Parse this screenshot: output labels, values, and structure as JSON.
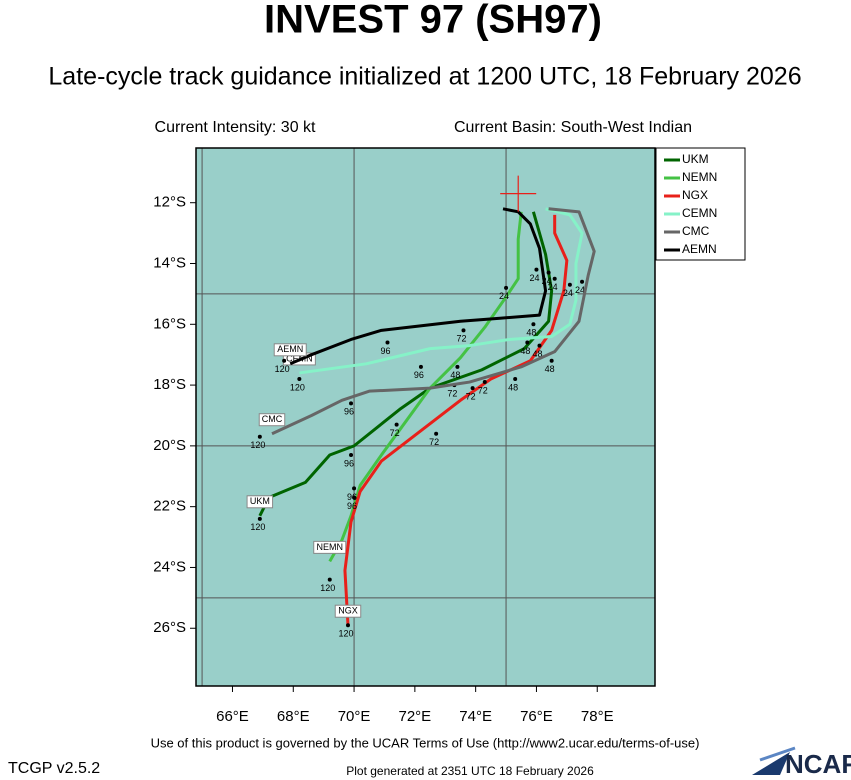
{
  "chart_data": {
    "type": "track-map",
    "title": "INVEST 97 (SH97)",
    "subtitle": "Late-cycle track guidance initialized at 1200 UTC, 18 February 2026",
    "current_intensity": "Current Intensity: 30 kt",
    "current_basin": "Current Basin: South-West Indian",
    "terms": "Use of this product is governed by the UCAR Terms of Use (http://www2.ucar.edu/terms-of-use)",
    "version": "TCGP v2.5.2",
    "generated": "Plot generated at 2351 UTC   18 February 2026",
    "logo": "NCAR",
    "background": "#99cfc9",
    "xlim": [
      64.8,
      79.9
    ],
    "ylim": [
      -10.2,
      -27.9
    ],
    "xticks": [
      {
        "value": 66,
        "label": "66°E"
      },
      {
        "value": 68,
        "label": "68°E"
      },
      {
        "value": 70,
        "label": "70°E"
      },
      {
        "value": 72,
        "label": "72°E"
      },
      {
        "value": 74,
        "label": "74°E"
      },
      {
        "value": 76,
        "label": "76°E"
      },
      {
        "value": 78,
        "label": "78°E"
      }
    ],
    "yticks": [
      {
        "value": -12,
        "label": "12°S"
      },
      {
        "value": -14,
        "label": "14°S"
      },
      {
        "value": -16,
        "label": "16°S"
      },
      {
        "value": -18,
        "label": "18°S"
      },
      {
        "value": -20,
        "label": "20°S"
      },
      {
        "value": -22,
        "label": "22°S"
      },
      {
        "value": -24,
        "label": "24°S"
      },
      {
        "value": -26,
        "label": "26°S"
      }
    ],
    "xgrid": [
      65,
      70,
      75
    ],
    "ygrid": [
      -15,
      -20,
      -25
    ],
    "current_position": {
      "lon": 75.4,
      "lat": -11.7
    },
    "legend": "upper right",
    "series": [
      {
        "name": "UKM",
        "color": "#006400",
        "lon": [
          75.9,
          76.3,
          76.5,
          76.4,
          75.6,
          74.2,
          72.5,
          71.5,
          70.0,
          69.2,
          68.4,
          67.2,
          66.9
        ],
        "lat": [
          -12.3,
          -13.7,
          -14.9,
          -15.9,
          -16.8,
          -17.5,
          -18.1,
          -18.8,
          -20.0,
          -20.3,
          -21.2,
          -21.7,
          -22.3
        ],
        "labels": [
          {
            "hour": 24,
            "lon": 76.4,
            "lat": -14.3
          },
          {
            "hour": 48,
            "lon": 75.7,
            "lat": -16.6
          },
          {
            "hour": 72,
            "lon": 73.3,
            "lat": -18.0
          },
          {
            "hour": 96,
            "lon": 69.9,
            "lat": -20.3
          },
          {
            "hour": 120,
            "lon": 66.9,
            "lat": -22.4
          }
        ]
      },
      {
        "name": "NEMN",
        "color": "#44c244",
        "lon": [
          75.5,
          75.4,
          75.4,
          75.0,
          74.3,
          73.5,
          72.5,
          71.7,
          70.9,
          70.2,
          69.9,
          69.6,
          69.2
        ],
        "lat": [
          -12.3,
          -13.2,
          -14.5,
          -15.1,
          -16.1,
          -17.1,
          -18.1,
          -19.2,
          -20.3,
          -21.3,
          -22.3,
          -23.1,
          -23.8
        ],
        "labels": [
          {
            "hour": 24,
            "lon": 75.0,
            "lat": -14.8
          },
          {
            "hour": 48,
            "lon": 73.4,
            "lat": -17.4
          },
          {
            "hour": 72,
            "lon": 71.4,
            "lat": -19.3
          },
          {
            "hour": 96,
            "lon": 70.0,
            "lat": -21.4
          },
          {
            "hour": 120,
            "lon": 69.2,
            "lat": -24.4
          }
        ]
      },
      {
        "name": "NGX",
        "color": "#e8201a",
        "lon": [
          76.6,
          76.6,
          77.0,
          76.9,
          76.5,
          75.8,
          74.5,
          73.5,
          72.2,
          70.9,
          70.2,
          69.9,
          69.7,
          69.8
        ],
        "lat": [
          -12.4,
          -13.0,
          -13.9,
          -14.9,
          -16.2,
          -17.2,
          -17.8,
          -18.5,
          -19.5,
          -20.5,
          -21.5,
          -22.5,
          -24.1,
          -25.9
        ],
        "labels": [
          {
            "hour": 24,
            "lon": 76.6,
            "lat": -14.5
          },
          {
            "hour": 48,
            "lon": 75.3,
            "lat": -17.8
          },
          {
            "hour": 72,
            "lon": 72.7,
            "lat": -19.6
          },
          {
            "hour": 96,
            "lon": 70.0,
            "lat": -21.7
          },
          {
            "hour": 120,
            "lon": 69.8,
            "lat": -25.9
          }
        ]
      },
      {
        "name": "CEMN",
        "color": "#86f2c8",
        "lon": [
          76.3,
          77.1,
          77.5,
          77.3,
          77.3,
          77.1,
          76.5,
          75.1,
          73.8,
          72.5,
          70.4,
          68.2
        ],
        "lat": [
          -12.2,
          -12.4,
          -13.0,
          -14.0,
          -15.2,
          -16.0,
          -16.4,
          -16.5,
          -16.7,
          -16.8,
          -17.3,
          -17.6
        ],
        "labels": [
          {
            "hour": 24,
            "lon": 77.5,
            "lat": -14.6
          },
          {
            "hour": 48,
            "lon": 76.1,
            "lat": -16.7
          },
          {
            "hour": 72,
            "lon": 74.3,
            "lat": -17.9
          },
          {
            "hour": 96,
            "lon": 72.2,
            "lat": -17.4
          },
          {
            "hour": 120,
            "lon": 68.2,
            "lat": -17.8
          }
        ]
      },
      {
        "name": "CMC",
        "color": "#666666",
        "lon": [
          76.4,
          77.4,
          77.9,
          77.7,
          77.4,
          76.6,
          75.5,
          73.8,
          72.5,
          70.5,
          69.6,
          68.6,
          67.3
        ],
        "lat": [
          -12.2,
          -12.3,
          -13.6,
          -14.4,
          -15.9,
          -16.9,
          -17.4,
          -17.9,
          -18.1,
          -18.2,
          -18.5,
          -19.0,
          -19.6
        ],
        "labels": [
          {
            "hour": 24,
            "lon": 77.1,
            "lat": -14.7
          },
          {
            "hour": 48,
            "lon": 76.5,
            "lat": -17.2
          },
          {
            "hour": 72,
            "lon": 73.9,
            "lat": -18.1
          },
          {
            "hour": 96,
            "lon": 69.9,
            "lat": -18.6
          },
          {
            "hour": 120,
            "lon": 66.9,
            "lat": -19.7
          }
        ]
      },
      {
        "name": "AEMN",
        "color": "#000000",
        "lon": [
          74.9,
          75.4,
          75.8,
          76.1,
          76.3,
          76.1,
          74.8,
          73.5,
          70.9,
          69.9,
          68.6,
          67.9
        ],
        "lat": [
          -12.2,
          -12.3,
          -12.7,
          -13.5,
          -14.9,
          -15.7,
          -15.8,
          -15.9,
          -16.2,
          -16.5,
          -17.0,
          -17.3
        ],
        "labels": [
          {
            "hour": 24,
            "lon": 76.0,
            "lat": -14.2
          },
          {
            "hour": 48,
            "lon": 75.9,
            "lat": -16.0
          },
          {
            "hour": 72,
            "lon": 73.6,
            "lat": -16.2
          },
          {
            "hour": 96,
            "lon": 71.1,
            "lat": -16.6
          },
          {
            "hour": 120,
            "lon": 67.7,
            "lat": -17.2
          }
        ]
      }
    ]
  }
}
